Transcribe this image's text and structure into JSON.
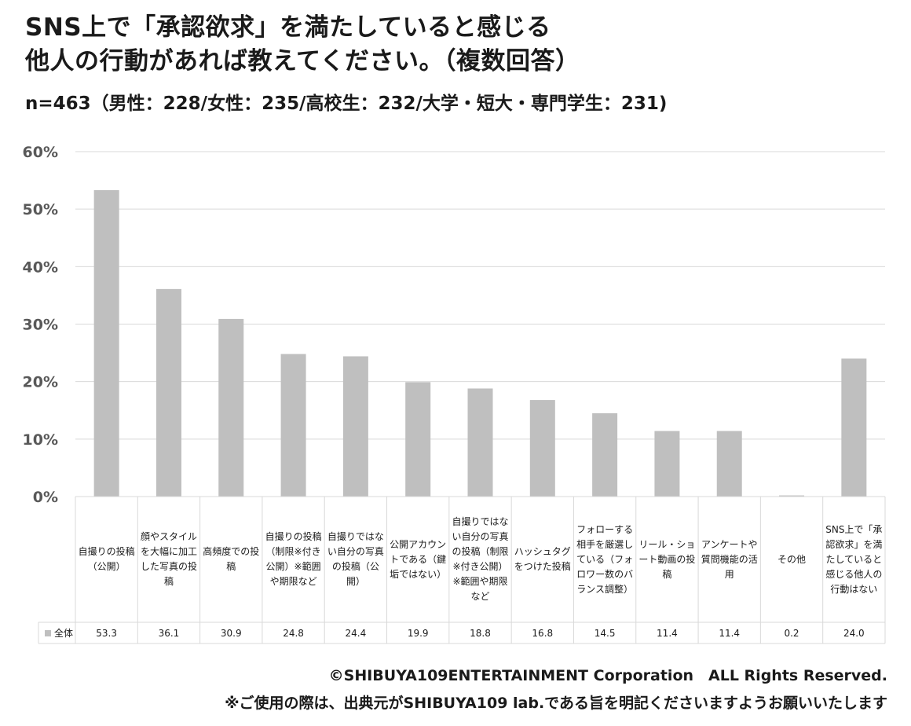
{
  "title_line1": "SNS上で「承認欲求」を満たしていると感じる",
  "title_line2": "他人の行動があれば教えてください。（複数回答）",
  "subtitle": "n=463（男性：228/女性：235/高校生：232/大学・短大・専門学生：231)",
  "footer_line1": "©SHIBUYA109ENTERTAINMENT Corporation　ALL Rights Reserved.",
  "footer_line2": "※ご使用の際は、出典元がSHIBUYA109 lab.である旨を明記くださいますようお願いいたします",
  "colors": {
    "bar": "#bfbfbf",
    "grid": "#d9d9d9",
    "border": "#d9d9d9",
    "text": "#1a1a1a"
  },
  "chart_data": {
    "type": "bar",
    "categories": [
      "自撮りの投稿（公開）",
      "顔やスタイルを大幅に加工した写真の投稿",
      "高頻度での投稿",
      "自撮りの投稿（制限※付き公開）※範囲や期限など",
      "自撮りではない自分の写真の投稿（公開）",
      "公開アカウントである（鍵垢ではない）",
      "自撮りではない自分の写真の投稿（制限※付き公開）※範囲や期限など",
      "ハッシュタグをつけた投稿",
      "フォローする相手を厳選している（フォロワー数のバランス調整）",
      "リール・ショート動画の投稿",
      "アンケートや質問機能の活用",
      "その他",
      "SNS上で「承認欲求」を満たしていると感じる他人の行動はない"
    ],
    "series": [
      {
        "name": "全体",
        "values": [
          53.3,
          36.1,
          30.9,
          24.8,
          24.4,
          19.9,
          18.8,
          16.8,
          14.5,
          11.4,
          11.4,
          0.2,
          24.0
        ]
      }
    ],
    "value_labels": [
      "53.3",
      "36.1",
      "30.9",
      "24.8",
      "24.4",
      "19.9",
      "18.8",
      "16.8",
      "14.5",
      "11.4",
      "11.4",
      "0.2",
      "24.0"
    ],
    "ylim": [
      0,
      60
    ],
    "yticks": [
      "0%",
      "10%",
      "20%",
      "30%",
      "40%",
      "50%",
      "60%"
    ],
    "grid": true,
    "legend_placement": "data-table"
  }
}
